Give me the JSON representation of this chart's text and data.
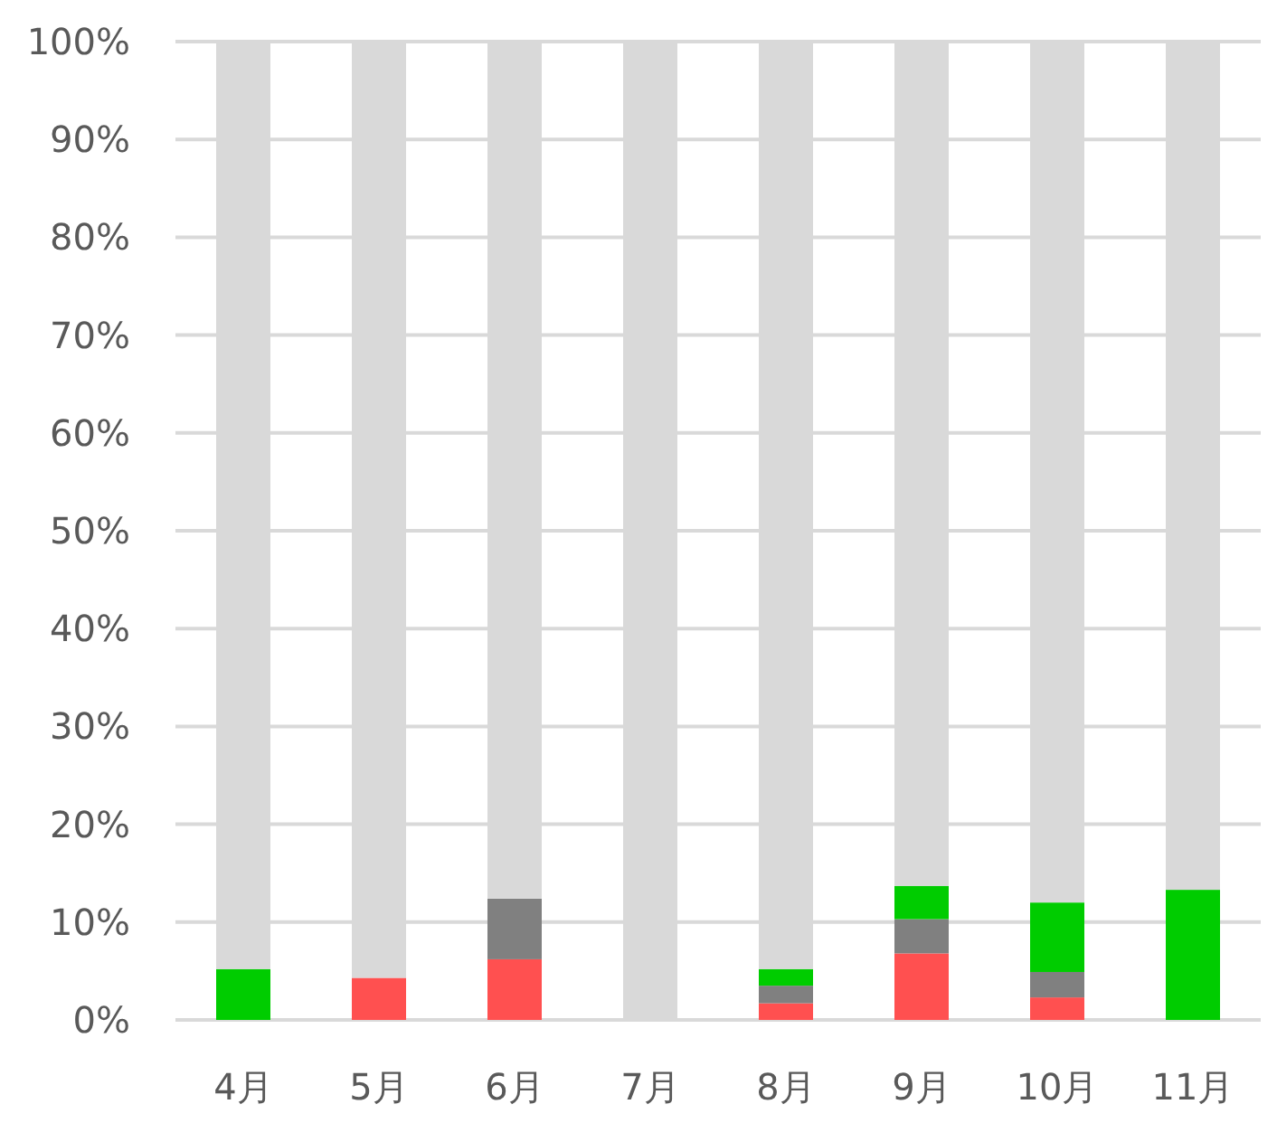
{
  "chart_data": {
    "type": "bar",
    "stacked": true,
    "categories": [
      "4月",
      "5月",
      "6月",
      "7月",
      "8月",
      "9月",
      "10月",
      "11月"
    ],
    "series": [
      {
        "color": "#ff5050",
        "values": [
          null,
          4.3,
          6.2,
          null,
          1.7,
          6.8,
          2.3,
          null
        ]
      },
      {
        "color": "#808080",
        "values": [
          null,
          null,
          6.2,
          null,
          1.8,
          3.5,
          2.6,
          null
        ]
      },
      {
        "color": "#00cc00",
        "values": [
          5.2,
          null,
          null,
          null,
          1.7,
          3.4,
          7.1,
          13.3
        ]
      },
      {
        "color": "#d9d9d9",
        "values": [
          94.8,
          95.7,
          87.6,
          100,
          94.8,
          86.3,
          88.0,
          86.7
        ]
      }
    ],
    "ylim": [
      0,
      100
    ],
    "yticks": [
      {
        "value": 0,
        "label": "0%"
      },
      {
        "value": 10,
        "label": "10%"
      },
      {
        "value": 20,
        "label": "20%"
      },
      {
        "value": 30,
        "label": "30%"
      },
      {
        "value": 40,
        "label": "40%"
      },
      {
        "value": 50,
        "label": "50%"
      },
      {
        "value": 60,
        "label": "60%"
      },
      {
        "value": 70,
        "label": "70%"
      },
      {
        "value": 80,
        "label": "80%"
      },
      {
        "value": 90,
        "label": "90%"
      },
      {
        "value": 100,
        "label": "100%"
      }
    ],
    "grid": "y"
  }
}
